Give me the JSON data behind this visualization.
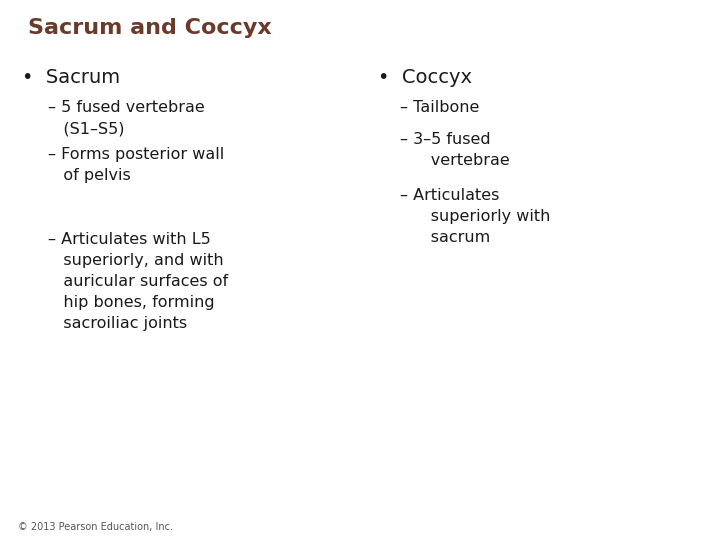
{
  "title": "Sacrum and Coccyx",
  "title_color": "#6B3A2A",
  "title_fontsize": 16,
  "background_color": "#FFFFFF",
  "text_color": "#1a1a1a",
  "bullet_fontsize": 14,
  "sub_fontsize": 11.5,
  "footer": "© 2013 Pearson Education, Inc.",
  "footer_fontsize": 7,
  "left_bullet": "Sacrum",
  "right_bullet": "Coccyx"
}
